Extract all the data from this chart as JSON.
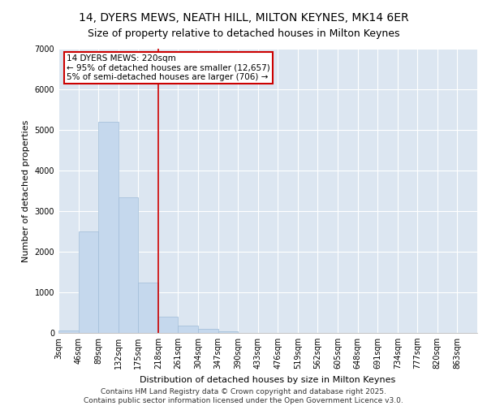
{
  "title1": "14, DYERS MEWS, NEATH HILL, MILTON KEYNES, MK14 6ER",
  "title2": "Size of property relative to detached houses in Milton Keynes",
  "xlabel": "Distribution of detached houses by size in Milton Keynes",
  "ylabel": "Number of detached properties",
  "bar_color": "#c5d8ed",
  "bar_edge_color": "#a0bcd8",
  "background_color": "#dce6f1",
  "grid_color": "#ffffff",
  "bins": [
    "3sqm",
    "46sqm",
    "89sqm",
    "132sqm",
    "175sqm",
    "218sqm",
    "261sqm",
    "304sqm",
    "347sqm",
    "390sqm",
    "433sqm",
    "476sqm",
    "519sqm",
    "562sqm",
    "605sqm",
    "648sqm",
    "691sqm",
    "734sqm",
    "777sqm",
    "820sqm",
    "863sqm"
  ],
  "bin_edges": [
    3,
    46,
    89,
    132,
    175,
    218,
    261,
    304,
    347,
    390,
    433,
    476,
    519,
    562,
    605,
    648,
    691,
    734,
    777,
    820,
    863
  ],
  "bar_heights": [
    60,
    2500,
    5200,
    3350,
    1250,
    400,
    190,
    95,
    50,
    10,
    0,
    0,
    0,
    0,
    0,
    0,
    0,
    0,
    0,
    0
  ],
  "ylim": [
    0,
    7000
  ],
  "yticks": [
    0,
    1000,
    2000,
    3000,
    4000,
    5000,
    6000,
    7000
  ],
  "property_line_x": 218,
  "property_line_color": "#cc0000",
  "annotation_title": "14 DYERS MEWS: 220sqm",
  "annotation_line1": "← 95% of detached houses are smaller (12,657)",
  "annotation_line2": "5% of semi-detached houses are larger (706) →",
  "annotation_box_color": "#cc0000",
  "footer_line1": "Contains HM Land Registry data © Crown copyright and database right 2025.",
  "footer_line2": "Contains public sector information licensed under the Open Government Licence v3.0.",
  "title_fontsize": 10,
  "subtitle_fontsize": 9,
  "axis_label_fontsize": 8,
  "tick_fontsize": 7,
  "annotation_fontsize": 7.5,
  "footer_fontsize": 6.5
}
